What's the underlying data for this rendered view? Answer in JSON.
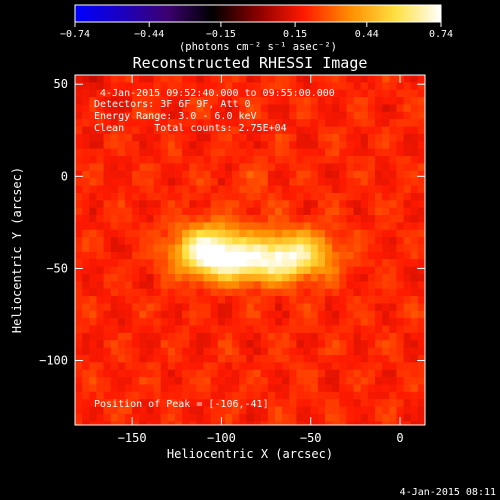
{
  "chart_data": {
    "type": "heatmap",
    "title": "Reconstructed RHESSI Image",
    "xlabel": "Heliocentric X (arcsec)",
    "ylabel": "Heliocentric Y (arcsec)",
    "xlim": [
      -182,
      14
    ],
    "ylim": [
      -135,
      55
    ],
    "xticks": [
      -150,
      -100,
      -50,
      0
    ],
    "yticks": [
      50,
      0,
      -50,
      -100
    ],
    "xtick_labels": [
      "−150",
      "−100",
      "−50",
      "0"
    ],
    "ytick_labels": [
      "50",
      "0",
      "−50",
      "−100"
    ],
    "colorbar": {
      "range": [
        -0.74,
        0.74
      ],
      "ticks": [
        -0.74,
        -0.44,
        -0.15,
        0.15,
        0.44,
        0.74
      ],
      "tick_labels": [
        "−0.74",
        "−0.44",
        "−0.15",
        "0.15",
        "0.44",
        "0.74"
      ],
      "unit_label": "(photons cm⁻² s⁻¹ asec⁻²)",
      "colors": [
        "#0000ff",
        "#1a00c0",
        "#3c0070",
        "#000000",
        "#8a0000",
        "#ff1a00",
        "#ff8c00",
        "#ffe040",
        "#ffffff"
      ]
    },
    "annotations": [
      "4-Jan-2015 09:52:40.000 to 09:55:00.000",
      "Detectors: 3F 6F 9F, Att 0",
      "Energy Range: 3.0 - 6.0 keV",
      "Clean     Total counts: 2.75E+04",
      "Position of Peak = [-106,-41]"
    ],
    "peak": {
      "x": -106,
      "y": -41
    },
    "sources": [
      {
        "x": -106,
        "y": -40,
        "peak": 0.74
      },
      {
        "x": -60,
        "y": -42,
        "peak": 0.62
      },
      {
        "x": -85,
        "y": -48,
        "peak": 0.5
      },
      {
        "x": -80,
        "y": -5,
        "peak": 0.25
      },
      {
        "x": -30,
        "y": -90,
        "peak": 0.2
      }
    ],
    "footer": "4-Jan-2015 08:11"
  }
}
